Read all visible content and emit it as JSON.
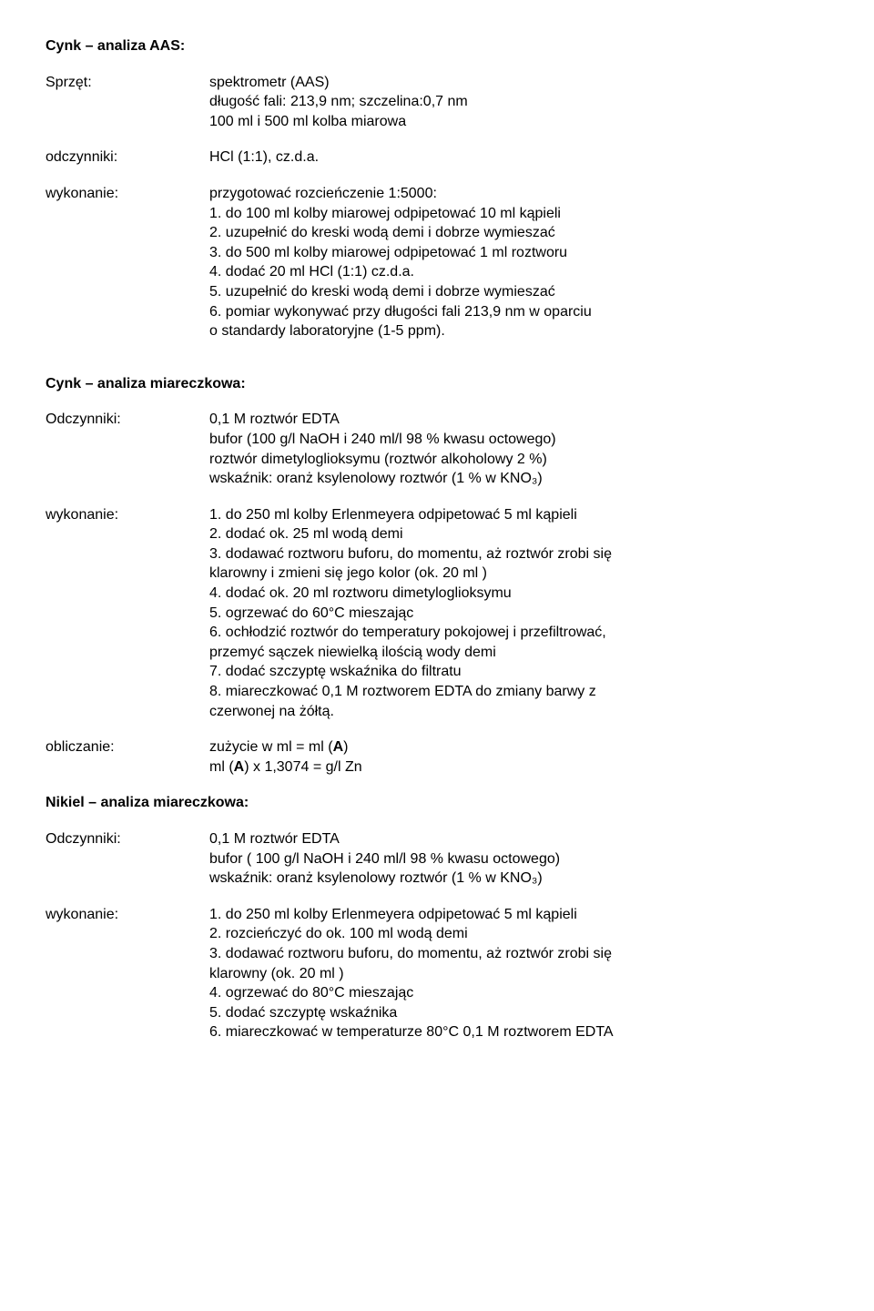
{
  "doc": {
    "s1_title": "Cynk – analiza AAS:",
    "s1_equip_label": "Sprzęt:",
    "s1_equip_l1": "spektrometr (AAS)",
    "s1_equip_l2": "długość fali: 213,9 nm; szczelina:0,7 nm",
    "s1_equip_l3": "100 ml i 500 ml kolba miarowa",
    "s1_reag_label": "odczynniki:",
    "s1_reag_l1": "HCl (1:1), cz.d.a.",
    "s1_exec_label": "wykonanie:",
    "s1_exec_l1": "przygotować rozcieńczenie 1:5000:",
    "s1_exec_l2": "1. do 100 ml kolby miarowej odpipetować 10 ml kąpieli",
    "s1_exec_l3": "2. uzupełnić do kreski wodą demi i dobrze wymieszać",
    "s1_exec_l4": "3. do 500 ml kolby miarowej odpipetować 1 ml roztworu",
    "s1_exec_l5": "4. dodać 20 ml HCl (1:1) cz.d.a.",
    "s1_exec_l6": "5. uzupełnić do kreski wodą demi i dobrze wymieszać",
    "s1_exec_l7": "6. pomiar wykonywać przy długości fali 213,9 nm w oparciu",
    "s1_exec_l8": "o standardy laboratoryjne (1-5 ppm).",
    "s2_title": "Cynk – analiza miareczkowa:",
    "s2_reag_label": "Odczynniki:",
    "s2_reag_l1": "0,1 M roztwór EDTA",
    "s2_reag_l2": "bufor (100 g/l NaOH i 240 ml/l 98 % kwasu octowego)",
    "s2_reag_l3": "roztwór dimetyloglioksymu (roztwór alkoholowy 2 %)",
    "s2_reag_l4": "wskaźnik: oranż ksylenolowy roztwór (1 % w KNO₃)",
    "s2_exec_label": "wykonanie:",
    "s2_exec_l1": "1. do 250 ml kolby Erlenmeyera odpipetować 5 ml kąpieli",
    "s2_exec_l2": "2. dodać ok. 25 ml wodą demi",
    "s2_exec_l3": "3. dodawać roztworu buforu, do momentu, aż roztwór zrobi się",
    "s2_exec_l4": "klarowny i zmieni się jego kolor (ok. 20 ml )",
    "s2_exec_l5": "4. dodać ok. 20 ml roztworu dimetyloglioksymu",
    "s2_exec_l6": "5. ogrzewać do 60°C mieszając",
    "s2_exec_l7": "6. ochłodzić roztwór do temperatury pokojowej i przefiltrować,",
    "s2_exec_l8": "przemyć sączek niewielką ilością wody demi",
    "s2_exec_l9": "7. dodać szczyptę wskaźnika do filtratu",
    "s2_exec_l10": "8. miareczkować 0,1 M roztworem EDTA do zmiany barwy z",
    "s2_exec_l11": "czerwonej na żółtą.",
    "s2_calc_label": "obliczanie:",
    "s2_calc_l1a": "zużycie w ml =  ml (",
    "s2_calc_l1b": "A",
    "s2_calc_l1c": ")",
    "s2_calc_l2a": "ml (",
    "s2_calc_l2b": "A",
    "s2_calc_l2c": ") x 1,3074 = g/l Zn",
    "s3_title": "Nikiel – analiza miareczkowa:",
    "s3_reag_label": "Odczynniki:",
    "s3_reag_l1": "0,1 M roztwór EDTA",
    "s3_reag_l2": "bufor ( 100 g/l NaOH i 240 ml/l 98 % kwasu octowego)",
    "s3_reag_l3": "wskaźnik: oranż ksylenolowy roztwór (1 % w KNO₃)",
    "s3_exec_label": "wykonanie:",
    "s3_exec_l1": "1. do 250 ml kolby Erlenmeyera odpipetować 5 ml kąpieli",
    "s3_exec_l2": "2. rozcieńczyć do ok. 100 ml wodą demi",
    "s3_exec_l3": "3. dodawać roztworu buforu, do momentu, aż roztwór zrobi się",
    "s3_exec_l4": "klarowny (ok. 20 ml )",
    "s3_exec_l5": "4. ogrzewać do 80°C mieszając",
    "s3_exec_l6": "5. dodać szczyptę wskaźnika",
    "s3_exec_l7": "6. miareczkować w temperaturze 80°C 0,1 M roztworem EDTA"
  }
}
